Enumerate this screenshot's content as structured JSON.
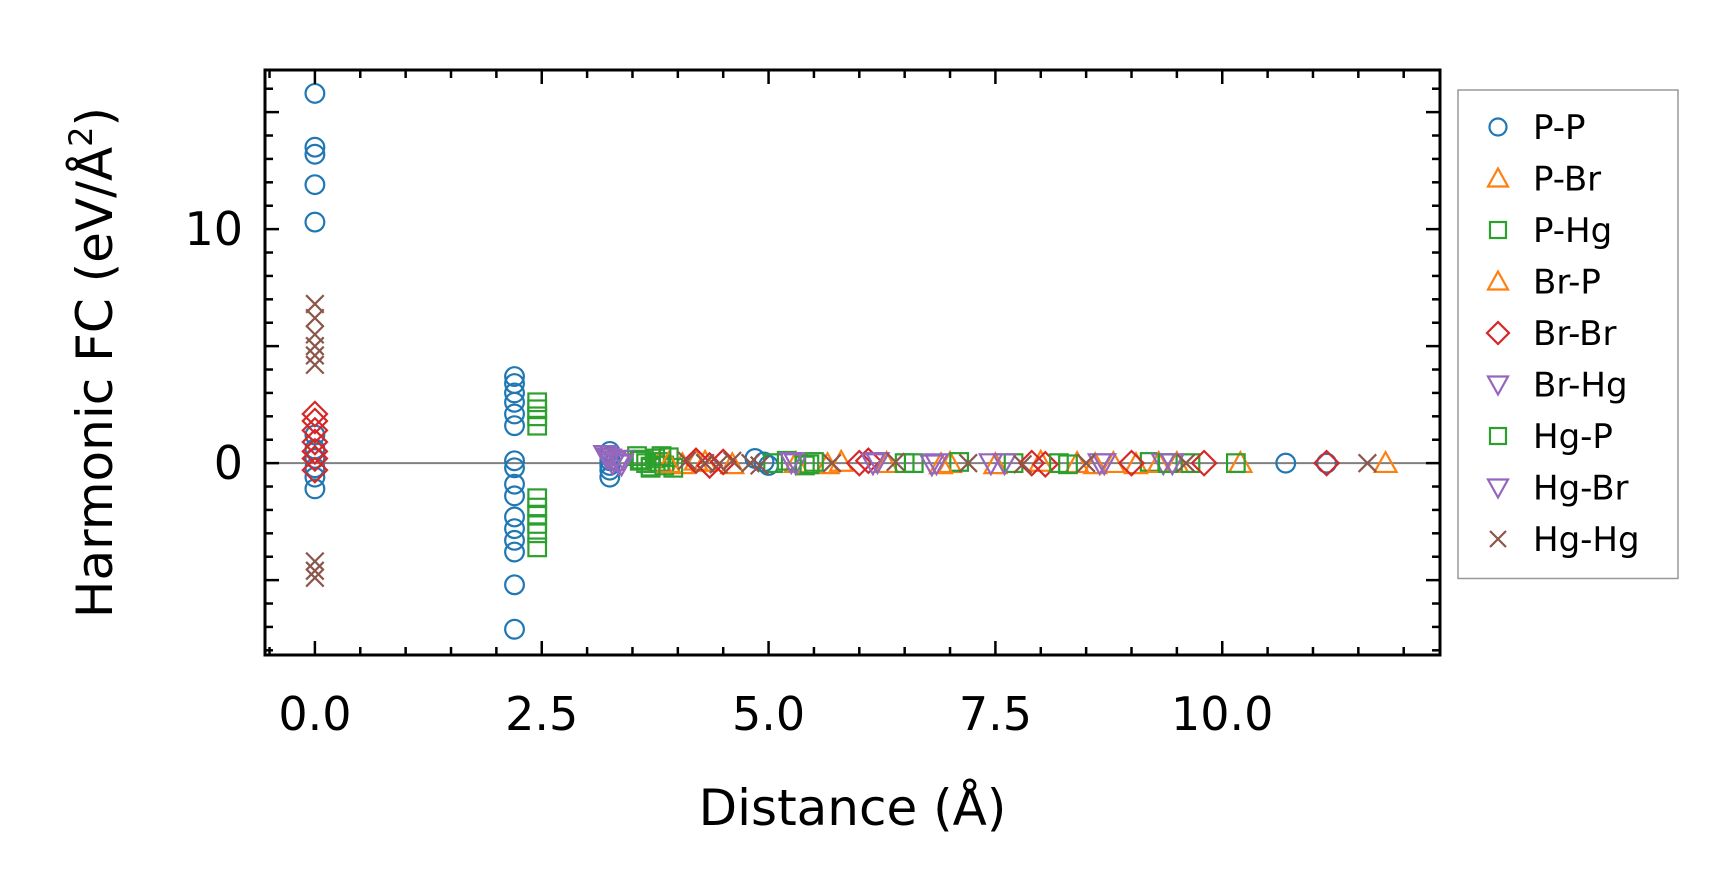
{
  "chart_data": {
    "type": "scatter",
    "xlabel": "Distance (Å)",
    "ylabel_main": "Harmonic FC (eV/Å",
    "ylabel_sup": "2",
    "ylabel_close": ")",
    "xlim": [
      -0.55,
      12.4
    ],
    "ylim": [
      -8.2,
      16.8
    ],
    "xticks": [
      0.0,
      2.5,
      5.0,
      7.5,
      10.0
    ],
    "xtick_labels": [
      "0.0",
      "2.5",
      "5.0",
      "7.5",
      "10.0"
    ],
    "yticks": [
      0,
      10
    ],
    "ytick_labels": [
      "0",
      "10"
    ],
    "zero_line": true,
    "grid": false,
    "legend_position": "outside-right",
    "series": [
      {
        "name": "P-P",
        "marker": "circle",
        "color": "#1f77b4",
        "points": [
          [
            0,
            15.8
          ],
          [
            0,
            13.5
          ],
          [
            0,
            13.2
          ],
          [
            0,
            11.9
          ],
          [
            0,
            10.3
          ],
          [
            0,
            1.2
          ],
          [
            0,
            0.6
          ],
          [
            0,
            0.2
          ],
          [
            0,
            -0.2
          ],
          [
            0,
            -0.6
          ],
          [
            0,
            -1.1
          ],
          [
            2.2,
            3.7
          ],
          [
            2.2,
            3.4
          ],
          [
            2.2,
            3.0
          ],
          [
            2.2,
            2.6
          ],
          [
            2.2,
            2.1
          ],
          [
            2.2,
            1.6
          ],
          [
            2.2,
            0.1
          ],
          [
            2.2,
            -0.2
          ],
          [
            2.2,
            -0.9
          ],
          [
            2.2,
            -1.4
          ],
          [
            2.2,
            -2.3
          ],
          [
            2.2,
            -2.8
          ],
          [
            2.2,
            -3.3
          ],
          [
            2.2,
            -3.8
          ],
          [
            2.2,
            -5.2
          ],
          [
            2.2,
            -7.1
          ],
          [
            3.25,
            0.5
          ],
          [
            3.25,
            0.3
          ],
          [
            3.25,
            0.1
          ],
          [
            3.25,
            -0.1
          ],
          [
            3.25,
            -0.3
          ],
          [
            3.25,
            -0.6
          ],
          [
            4.85,
            0.2
          ],
          [
            4.95,
            0.05
          ],
          [
            5.0,
            -0.1
          ],
          [
            10.7,
            0.0
          ],
          [
            11.15,
            0.0
          ]
        ]
      },
      {
        "name": "P-Br",
        "marker": "triangle-up",
        "color": "#ff7f0e",
        "points": [
          [
            3.8,
            0.05
          ],
          [
            4.05,
            -0.05
          ],
          [
            4.3,
            0.05
          ],
          [
            5.3,
            0.0
          ],
          [
            5.65,
            -0.05
          ],
          [
            6.3,
            0.0
          ],
          [
            7.0,
            0.0
          ],
          [
            7.5,
            -0.05
          ],
          [
            8.4,
            0.0
          ],
          [
            8.8,
            0.0
          ],
          [
            9.05,
            -0.05
          ],
          [
            9.5,
            0.0
          ],
          [
            10.2,
            0.0
          ],
          [
            11.8,
            0.0
          ]
        ]
      },
      {
        "name": "P-Hg",
        "marker": "square",
        "color": "#2ca02c",
        "points": [
          [
            2.45,
            2.6
          ],
          [
            2.45,
            2.3
          ],
          [
            2.45,
            2.0
          ],
          [
            2.45,
            1.6
          ],
          [
            2.45,
            -1.5
          ],
          [
            2.45,
            -1.9
          ],
          [
            2.45,
            -2.2
          ],
          [
            2.45,
            -2.6
          ],
          [
            2.45,
            -3.0
          ],
          [
            2.45,
            -3.6
          ],
          [
            3.55,
            0.3
          ],
          [
            3.6,
            0.15
          ],
          [
            3.65,
            0.0
          ],
          [
            3.7,
            -0.15
          ],
          [
            3.75,
            0.2
          ],
          [
            3.8,
            0.05
          ],
          [
            3.85,
            -0.1
          ],
          [
            3.9,
            0.25
          ],
          [
            3.95,
            -0.2
          ],
          [
            5.2,
            0.1
          ],
          [
            5.4,
            -0.1
          ],
          [
            5.5,
            0.05
          ],
          [
            6.5,
            0.0
          ],
          [
            7.1,
            0.05
          ],
          [
            7.7,
            0.0
          ],
          [
            8.3,
            -0.05
          ],
          [
            9.2,
            0.05
          ],
          [
            9.65,
            0.0
          ],
          [
            10.15,
            0.0
          ]
        ]
      },
      {
        "name": "Br-P",
        "marker": "triangle-up",
        "color": "#ff7f0e",
        "points": [
          [
            3.9,
            0.0
          ],
          [
            4.2,
            0.1
          ],
          [
            4.6,
            -0.05
          ],
          [
            5.8,
            0.05
          ],
          [
            6.9,
            -0.05
          ],
          [
            8.0,
            0.05
          ],
          [
            8.6,
            -0.05
          ],
          [
            9.3,
            0.0
          ]
        ]
      },
      {
        "name": "Br-Br",
        "marker": "diamond",
        "color": "#d62728",
        "points": [
          [
            0,
            2.1
          ],
          [
            0,
            1.8
          ],
          [
            0,
            1.4
          ],
          [
            0,
            0.9
          ],
          [
            0,
            0.5
          ],
          [
            0,
            0.2
          ],
          [
            0,
            -0.3
          ],
          [
            4.2,
            0.1
          ],
          [
            4.35,
            -0.1
          ],
          [
            4.5,
            0.05
          ],
          [
            6.0,
            0.0
          ],
          [
            6.1,
            0.1
          ],
          [
            7.9,
            0.0
          ],
          [
            8.05,
            -0.05
          ],
          [
            9.0,
            0.0
          ],
          [
            9.8,
            0.0
          ],
          [
            11.15,
            0.0
          ]
        ]
      },
      {
        "name": "Br-Hg",
        "marker": "triangle-down",
        "color": "#9467bd",
        "points": [
          [
            3.2,
            0.35
          ],
          [
            3.25,
            0.2
          ],
          [
            3.3,
            0.1
          ],
          [
            3.35,
            0.0
          ],
          [
            3.4,
            0.15
          ],
          [
            5.3,
            0.0
          ],
          [
            6.2,
            0.05
          ],
          [
            6.85,
            0.0
          ],
          [
            7.6,
            0.0
          ],
          [
            8.7,
            0.0
          ],
          [
            9.35,
            0.0
          ]
        ]
      },
      {
        "name": "Hg-P",
        "marker": "square",
        "color": "#2ca02c",
        "points": [
          [
            3.58,
            0.1
          ],
          [
            3.7,
            -0.2
          ],
          [
            3.82,
            0.3
          ],
          [
            5.05,
            0.0
          ],
          [
            5.45,
            -0.05
          ],
          [
            6.6,
            0.0
          ],
          [
            8.2,
            0.0
          ],
          [
            9.4,
            0.0
          ]
        ]
      },
      {
        "name": "Hg-Br",
        "marker": "triangle-down",
        "color": "#9467bd",
        "points": [
          [
            3.22,
            0.25
          ],
          [
            3.28,
            0.0
          ],
          [
            3.38,
            -0.05
          ],
          [
            5.25,
            0.05
          ],
          [
            6.15,
            0.0
          ],
          [
            6.8,
            -0.05
          ],
          [
            7.45,
            0.0
          ],
          [
            8.65,
            0.0
          ],
          [
            9.45,
            0.0
          ]
        ]
      },
      {
        "name": "Hg-Hg",
        "marker": "x",
        "color": "#8c564b",
        "points": [
          [
            0,
            6.8
          ],
          [
            0,
            6.2
          ],
          [
            0,
            5.5
          ],
          [
            0,
            5.0
          ],
          [
            0,
            4.6
          ],
          [
            0,
            4.2
          ],
          [
            0,
            -4.2
          ],
          [
            0,
            -4.6
          ],
          [
            0,
            -4.9
          ],
          [
            4.1,
            0.1
          ],
          [
            4.3,
            0.0
          ],
          [
            4.45,
            -0.05
          ],
          [
            4.6,
            0.1
          ],
          [
            4.8,
            0.0
          ],
          [
            4.9,
            -0.1
          ],
          [
            5.7,
            0.0
          ],
          [
            6.4,
            0.05
          ],
          [
            7.2,
            0.0
          ],
          [
            7.8,
            -0.05
          ],
          [
            8.5,
            0.0
          ],
          [
            9.6,
            0.0
          ],
          [
            11.6,
            0.0
          ]
        ]
      }
    ]
  }
}
